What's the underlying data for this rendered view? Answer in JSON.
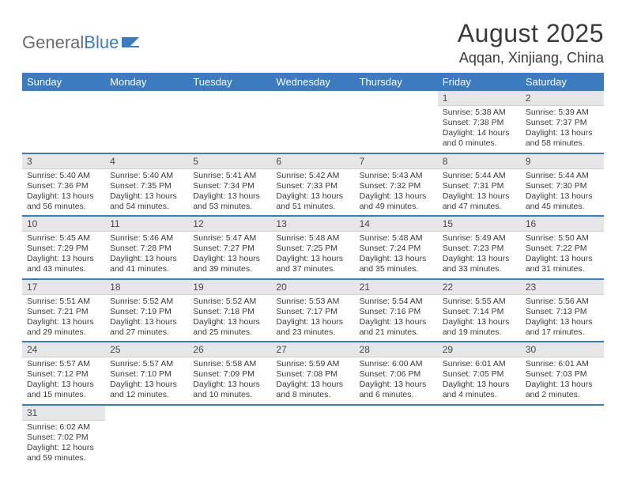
{
  "logo": {
    "text1": "General",
    "text2": "Blue"
  },
  "title": "August 2025",
  "location": "Aqqan, Xinjiang, China",
  "colors": {
    "header_bg": "#3b7bbf",
    "header_fg": "#ffffff",
    "daynum_bg": "#e6e6e6",
    "rule": "#3b7bbf"
  },
  "day_header_fontsize": 13,
  "daynum_fontsize": 12,
  "body_fontsize": 10.5,
  "weekdays": [
    "Sunday",
    "Monday",
    "Tuesday",
    "Wednesday",
    "Thursday",
    "Friday",
    "Saturday"
  ],
  "weeks": [
    [
      null,
      null,
      null,
      null,
      null,
      {
        "n": "1",
        "sr": "5:38 AM",
        "ss": "7:38 PM",
        "dl": "14 hours and 0 minutes."
      },
      {
        "n": "2",
        "sr": "5:39 AM",
        "ss": "7:37 PM",
        "dl": "13 hours and 58 minutes."
      }
    ],
    [
      {
        "n": "3",
        "sr": "5:40 AM",
        "ss": "7:36 PM",
        "dl": "13 hours and 56 minutes."
      },
      {
        "n": "4",
        "sr": "5:40 AM",
        "ss": "7:35 PM",
        "dl": "13 hours and 54 minutes."
      },
      {
        "n": "5",
        "sr": "5:41 AM",
        "ss": "7:34 PM",
        "dl": "13 hours and 53 minutes."
      },
      {
        "n": "6",
        "sr": "5:42 AM",
        "ss": "7:33 PM",
        "dl": "13 hours and 51 minutes."
      },
      {
        "n": "7",
        "sr": "5:43 AM",
        "ss": "7:32 PM",
        "dl": "13 hours and 49 minutes."
      },
      {
        "n": "8",
        "sr": "5:44 AM",
        "ss": "7:31 PM",
        "dl": "13 hours and 47 minutes."
      },
      {
        "n": "9",
        "sr": "5:44 AM",
        "ss": "7:30 PM",
        "dl": "13 hours and 45 minutes."
      }
    ],
    [
      {
        "n": "10",
        "sr": "5:45 AM",
        "ss": "7:29 PM",
        "dl": "13 hours and 43 minutes."
      },
      {
        "n": "11",
        "sr": "5:46 AM",
        "ss": "7:28 PM",
        "dl": "13 hours and 41 minutes."
      },
      {
        "n": "12",
        "sr": "5:47 AM",
        "ss": "7:27 PM",
        "dl": "13 hours and 39 minutes."
      },
      {
        "n": "13",
        "sr": "5:48 AM",
        "ss": "7:25 PM",
        "dl": "13 hours and 37 minutes."
      },
      {
        "n": "14",
        "sr": "5:48 AM",
        "ss": "7:24 PM",
        "dl": "13 hours and 35 minutes."
      },
      {
        "n": "15",
        "sr": "5:49 AM",
        "ss": "7:23 PM",
        "dl": "13 hours and 33 minutes."
      },
      {
        "n": "16",
        "sr": "5:50 AM",
        "ss": "7:22 PM",
        "dl": "13 hours and 31 minutes."
      }
    ],
    [
      {
        "n": "17",
        "sr": "5:51 AM",
        "ss": "7:21 PM",
        "dl": "13 hours and 29 minutes."
      },
      {
        "n": "18",
        "sr": "5:52 AM",
        "ss": "7:19 PM",
        "dl": "13 hours and 27 minutes."
      },
      {
        "n": "19",
        "sr": "5:52 AM",
        "ss": "7:18 PM",
        "dl": "13 hours and 25 minutes."
      },
      {
        "n": "20",
        "sr": "5:53 AM",
        "ss": "7:17 PM",
        "dl": "13 hours and 23 minutes."
      },
      {
        "n": "21",
        "sr": "5:54 AM",
        "ss": "7:16 PM",
        "dl": "13 hours and 21 minutes."
      },
      {
        "n": "22",
        "sr": "5:55 AM",
        "ss": "7:14 PM",
        "dl": "13 hours and 19 minutes."
      },
      {
        "n": "23",
        "sr": "5:56 AM",
        "ss": "7:13 PM",
        "dl": "13 hours and 17 minutes."
      }
    ],
    [
      {
        "n": "24",
        "sr": "5:57 AM",
        "ss": "7:12 PM",
        "dl": "13 hours and 15 minutes."
      },
      {
        "n": "25",
        "sr": "5:57 AM",
        "ss": "7:10 PM",
        "dl": "13 hours and 12 minutes."
      },
      {
        "n": "26",
        "sr": "5:58 AM",
        "ss": "7:09 PM",
        "dl": "13 hours and 10 minutes."
      },
      {
        "n": "27",
        "sr": "5:59 AM",
        "ss": "7:08 PM",
        "dl": "13 hours and 8 minutes."
      },
      {
        "n": "28",
        "sr": "6:00 AM",
        "ss": "7:06 PM",
        "dl": "13 hours and 6 minutes."
      },
      {
        "n": "29",
        "sr": "6:01 AM",
        "ss": "7:05 PM",
        "dl": "13 hours and 4 minutes."
      },
      {
        "n": "30",
        "sr": "6:01 AM",
        "ss": "7:03 PM",
        "dl": "13 hours and 2 minutes."
      }
    ],
    [
      {
        "n": "31",
        "sr": "6:02 AM",
        "ss": "7:02 PM",
        "dl": "12 hours and 59 minutes."
      },
      null,
      null,
      null,
      null,
      null,
      null
    ]
  ],
  "labels": {
    "sunrise": "Sunrise:",
    "sunset": "Sunset:",
    "daylight": "Daylight:"
  }
}
